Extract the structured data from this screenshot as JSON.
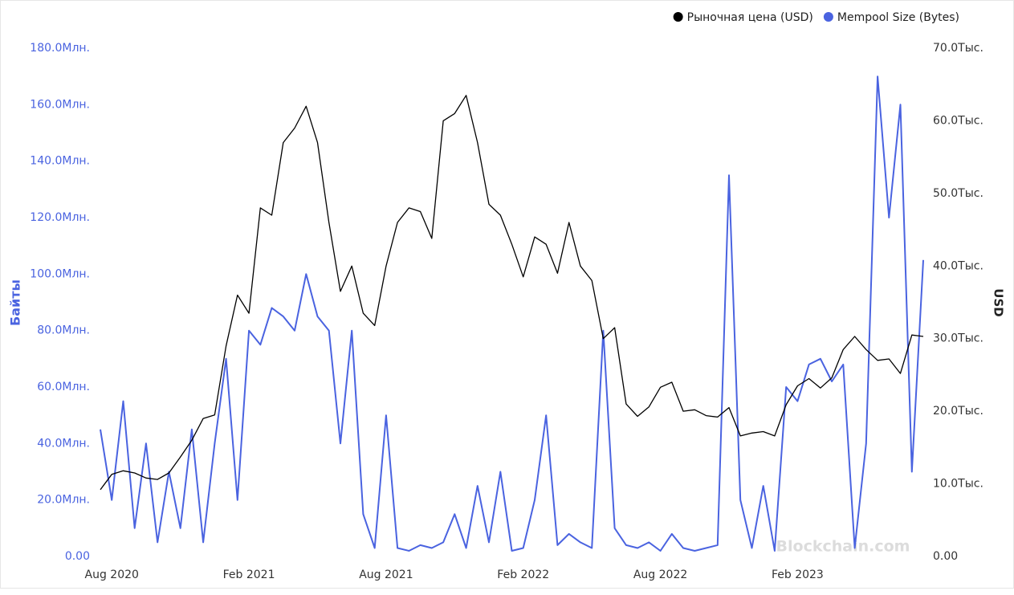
{
  "chart_data": {
    "type": "line",
    "legend_position": "top-right",
    "y_label": "Байты",
    "y2_label": "USD",
    "watermark": "Blockchain.com",
    "categories": [
      null,
      "Aug 2020",
      null,
      null,
      null,
      null,
      null,
      null,
      null,
      null,
      null,
      null,
      null,
      "Feb 2021",
      null,
      null,
      null,
      null,
      null,
      null,
      null,
      null,
      null,
      null,
      null,
      "Aug 2021",
      null,
      null,
      null,
      null,
      null,
      null,
      null,
      null,
      null,
      null,
      null,
      "Feb 2022",
      null,
      null,
      null,
      null,
      null,
      null,
      null,
      null,
      null,
      null,
      null,
      "Aug 2022",
      null,
      null,
      null,
      null,
      null,
      null,
      null,
      null,
      null,
      null,
      null,
      "Feb 2023",
      null,
      null,
      null,
      null,
      null,
      null,
      null,
      null,
      null,
      null,
      null
    ],
    "series": [
      {
        "name": "Рыночная цена (USD)",
        "color": "#000000",
        "axis": "y2",
        "values": [
          9200,
          11300,
          11800,
          11500,
          10800,
          10600,
          11500,
          13700,
          16000,
          19000,
          19500,
          29000,
          36000,
          33500,
          48000,
          47000,
          57000,
          59000,
          62000,
          57000,
          46000,
          36500,
          40000,
          33500,
          31800,
          40000,
          46000,
          48000,
          47500,
          43800,
          60000,
          61000,
          63500,
          57000,
          48500,
          47000,
          43000,
          38500,
          44000,
          43000,
          39000,
          46000,
          40000,
          38000,
          30000,
          31500,
          21000,
          19300,
          20600,
          23300,
          24000,
          20000,
          20200,
          19400,
          19200,
          20500,
          16600,
          17000,
          17200,
          16600,
          20900,
          23500,
          24500,
          23200,
          24600,
          28500,
          30300,
          28500,
          27000,
          27200,
          25200,
          30500,
          30300
        ]
      },
      {
        "name": "Mempool Size (Bytes)",
        "color": "#4a63e0",
        "values": [
          45000000,
          20000000,
          55000000,
          10000000,
          40000000,
          5000000,
          30000000,
          10000000,
          45000000,
          5000000,
          40000000,
          70000000,
          20000000,
          80000000,
          75000000,
          88000000,
          85000000,
          80000000,
          100000000,
          85000000,
          80000000,
          40000000,
          80000000,
          15000000,
          3000000,
          50000000,
          3000000,
          2000000,
          4000000,
          3000000,
          5000000,
          15000000,
          3000000,
          25000000,
          5000000,
          30000000,
          2000000,
          3000000,
          20000000,
          50000000,
          4000000,
          8000000,
          5000000,
          3000000,
          80000000,
          10000000,
          4000000,
          3000000,
          5000000,
          2000000,
          8000000,
          3000000,
          2000000,
          3000000,
          4000000,
          135000000,
          20000000,
          3000000,
          25000000,
          2000000,
          60000000,
          55000000,
          68000000,
          70000000,
          62000000,
          68000000,
          3000000,
          40000000,
          170000000,
          120000000,
          160000000,
          30000000,
          105000000
        ]
      }
    ],
    "ylim": [
      0,
      180000000
    ],
    "yticks": [
      {
        "value": 0,
        "label": "0.00"
      },
      {
        "value": 20000000,
        "label": "20.0Млн."
      },
      {
        "value": 40000000,
        "label": "40.0Млн."
      },
      {
        "value": 60000000,
        "label": "60.0Млн."
      },
      {
        "value": 80000000,
        "label": "80.0Млн."
      },
      {
        "value": 100000000,
        "label": "100.0Млн."
      },
      {
        "value": 120000000,
        "label": "120.0Млн."
      },
      {
        "value": 140000000,
        "label": "140.0Млн."
      },
      {
        "value": 160000000,
        "label": "160.0Млн."
      },
      {
        "value": 180000000,
        "label": "180.0Млн."
      }
    ],
    "y2lim": [
      0,
      70000
    ],
    "y2ticks": [
      {
        "value": 0,
        "label": "0.00"
      },
      {
        "value": 10000,
        "label": "10.0Тыс."
      },
      {
        "value": 20000,
        "label": "20.0Тыс."
      },
      {
        "value": 30000,
        "label": "30.0Тыс."
      },
      {
        "value": 40000,
        "label": "40.0Тыс."
      },
      {
        "value": 50000,
        "label": "50.0Тыс."
      },
      {
        "value": 60000,
        "label": "60.0Тыс."
      },
      {
        "value": 70000,
        "label": "70.0Тыс."
      }
    ]
  }
}
